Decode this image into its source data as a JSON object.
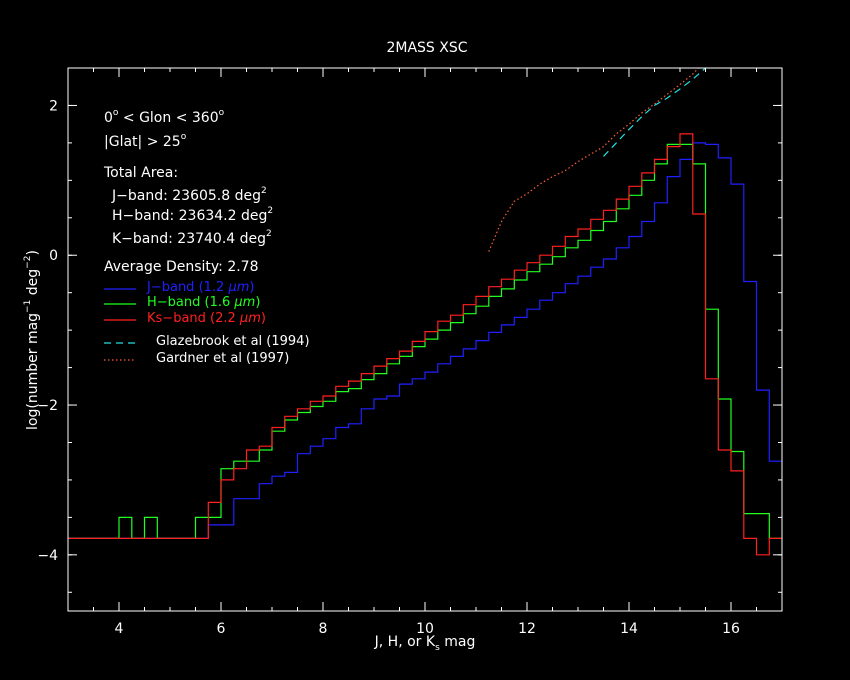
{
  "chart_data": {
    "type": "line",
    "title": "2MASS XSC",
    "xlabel": {
      "main": "J, H, or K",
      "sub": "s",
      "tail": " mag"
    },
    "ylabel": {
      "main": "log(number mag",
      "sup1": "−1",
      "mid": " deg",
      "sup2": "−2",
      "tail": ")"
    },
    "xlim": [
      3,
      17
    ],
    "ylim": [
      -4.75,
      2.5
    ],
    "xticks": [
      4,
      6,
      8,
      10,
      12,
      14,
      16
    ],
    "xtick_labels": [
      "4",
      "6",
      "8",
      "10",
      "12",
      "14",
      "16"
    ],
    "yticks": [
      -4,
      -2,
      0,
      2
    ],
    "ytick_labels": [
      "−4",
      "−2",
      "0",
      "2"
    ],
    "annotations": {
      "glon": {
        "pre": "0",
        "deg1": "o",
        "mid": " < Glon < 360",
        "deg2": "o"
      },
      "glat": {
        "pre": "|Glat| > 25",
        "deg": "o"
      },
      "area_title": "Total Area:",
      "jband": {
        "text": "J−band: 23605.8 deg",
        "sup": "2"
      },
      "hband": {
        "text": "H−band: 23634.2 deg",
        "sup": "2"
      },
      "kband": {
        "text": "K−band: 23740.4 deg",
        "sup": "2"
      },
      "density": "Average Density: 2.78"
    },
    "series": [
      {
        "name": "J−band (1.2 μm)",
        "label_pre": "J−band (1.2 ",
        "label_unit": "μm",
        "label_post": ")",
        "color": "#2020ff",
        "style": "step",
        "x": [
          3.0,
          3.25,
          3.5,
          3.75,
          4.0,
          4.25,
          4.5,
          4.75,
          5.0,
          5.25,
          5.5,
          5.75,
          6.0,
          6.25,
          6.5,
          6.75,
          7.0,
          7.25,
          7.5,
          7.75,
          8.0,
          8.25,
          8.5,
          8.75,
          9.0,
          9.25,
          9.5,
          9.75,
          10.0,
          10.25,
          10.5,
          10.75,
          11.0,
          11.25,
          11.5,
          11.75,
          12.0,
          12.25,
          12.5,
          12.75,
          13.0,
          13.25,
          13.5,
          13.75,
          14.0,
          14.25,
          14.5,
          14.75,
          15.0,
          15.25,
          15.5,
          15.75,
          16.0,
          16.25,
          16.5,
          16.75,
          17.0
        ],
        "y": [
          -3.78,
          -3.78,
          -3.78,
          -3.78,
          -3.78,
          -3.78,
          -3.78,
          -3.78,
          -3.78,
          -3.78,
          -3.78,
          -3.6,
          -3.6,
          -3.25,
          -3.25,
          -3.05,
          -2.95,
          -2.9,
          -2.65,
          -2.55,
          -2.45,
          -2.3,
          -2.25,
          -2.05,
          -1.92,
          -1.88,
          -1.72,
          -1.65,
          -1.56,
          -1.45,
          -1.35,
          -1.25,
          -1.14,
          -1.03,
          -0.93,
          -0.83,
          -0.72,
          -0.6,
          -0.5,
          -0.38,
          -0.28,
          -0.16,
          -0.05,
          0.1,
          0.25,
          0.45,
          0.7,
          1.05,
          1.28,
          1.5,
          1.48,
          1.3,
          0.95,
          -0.35,
          -1.8,
          -2.75,
          -3.78
        ]
      },
      {
        "name": "H−band (1.6 μm)",
        "label_pre": "H−band (1.6 ",
        "label_unit": "μm",
        "label_post": ")",
        "color": "#20ff20",
        "style": "step",
        "x": [
          3.0,
          3.25,
          3.5,
          3.75,
          4.0,
          4.25,
          4.5,
          4.75,
          5.0,
          5.25,
          5.5,
          5.75,
          6.0,
          6.25,
          6.5,
          6.75,
          7.0,
          7.25,
          7.5,
          7.75,
          8.0,
          8.25,
          8.5,
          8.75,
          9.0,
          9.25,
          9.5,
          9.75,
          10.0,
          10.25,
          10.5,
          10.75,
          11.0,
          11.25,
          11.5,
          11.75,
          12.0,
          12.25,
          12.5,
          12.75,
          13.0,
          13.25,
          13.5,
          13.75,
          14.0,
          14.25,
          14.5,
          14.75,
          15.0,
          15.25,
          15.5,
          15.75,
          16.0,
          16.25,
          16.5,
          16.75,
          17.0
        ],
        "y": [
          -3.78,
          -3.78,
          -3.78,
          -3.78,
          -3.5,
          -3.78,
          -3.5,
          -3.78,
          -3.78,
          -3.78,
          -3.5,
          -3.5,
          -2.85,
          -2.75,
          -2.75,
          -2.6,
          -2.35,
          -2.2,
          -2.1,
          -2.02,
          -1.95,
          -1.82,
          -1.78,
          -1.66,
          -1.58,
          -1.45,
          -1.35,
          -1.22,
          -1.12,
          -1.0,
          -0.9,
          -0.78,
          -0.68,
          -0.55,
          -0.45,
          -0.33,
          -0.22,
          -0.12,
          -0.02,
          0.1,
          0.2,
          0.33,
          0.45,
          0.62,
          0.8,
          1.0,
          1.22,
          1.48,
          1.48,
          1.22,
          -0.72,
          -1.92,
          -2.62,
          -3.45,
          -3.45,
          -3.78,
          -3.78
        ]
      },
      {
        "name": "Ks−band (2.2 μm)",
        "label_pre": "Ks−band (2.2 ",
        "label_unit": "μm",
        "label_post": ")",
        "color": "#ff2020",
        "style": "step",
        "x": [
          3.0,
          3.25,
          3.5,
          3.75,
          4.0,
          4.25,
          4.5,
          4.75,
          5.0,
          5.25,
          5.5,
          5.75,
          6.0,
          6.25,
          6.5,
          6.75,
          7.0,
          7.25,
          7.5,
          7.75,
          8.0,
          8.25,
          8.5,
          8.75,
          9.0,
          9.25,
          9.5,
          9.75,
          10.0,
          10.25,
          10.5,
          10.75,
          11.0,
          11.25,
          11.5,
          11.75,
          12.0,
          12.25,
          12.5,
          12.75,
          13.0,
          13.25,
          13.5,
          13.75,
          14.0,
          14.25,
          14.5,
          14.75,
          15.0,
          15.25,
          15.5,
          15.75,
          16.0,
          16.25,
          16.5,
          16.75,
          17.0
        ],
        "y": [
          -3.78,
          -3.78,
          -3.78,
          -3.78,
          -3.78,
          -3.78,
          -3.78,
          -3.78,
          -3.78,
          -3.78,
          -3.78,
          -3.3,
          -3.0,
          -2.85,
          -2.6,
          -2.55,
          -2.3,
          -2.15,
          -2.05,
          -1.95,
          -1.88,
          -1.75,
          -1.68,
          -1.58,
          -1.48,
          -1.38,
          -1.28,
          -1.15,
          -1.02,
          -0.88,
          -0.8,
          -0.66,
          -0.55,
          -0.42,
          -0.32,
          -0.2,
          -0.1,
          0.0,
          0.12,
          0.25,
          0.35,
          0.48,
          0.6,
          0.75,
          0.92,
          1.1,
          1.28,
          1.45,
          1.62,
          0.55,
          -1.65,
          -2.6,
          -2.88,
          -3.78,
          -4.0,
          -3.78,
          -3.78
        ]
      },
      {
        "name": "Glazebrook et al (1994)",
        "color": "#20e0e0",
        "style": "dashed",
        "x": [
          13.5,
          13.75,
          14.0,
          14.25,
          14.5,
          14.75,
          15.0,
          15.25,
          15.5
        ],
        "y": [
          1.32,
          1.5,
          1.68,
          1.85,
          2.0,
          2.1,
          2.22,
          2.35,
          2.5
        ]
      },
      {
        "name": "Gardner et al (1997)",
        "color": "#ff6030",
        "style": "dotted",
        "x": [
          11.25,
          11.5,
          11.75,
          12.0,
          12.25,
          12.5,
          12.75,
          13.0,
          13.25,
          13.5,
          13.75,
          14.0,
          14.25,
          14.5,
          14.75,
          15.0,
          15.25,
          15.5
        ],
        "y": [
          0.05,
          0.45,
          0.72,
          0.82,
          0.95,
          1.05,
          1.13,
          1.25,
          1.35,
          1.45,
          1.62,
          1.75,
          1.9,
          2.02,
          2.15,
          2.28,
          2.42,
          2.6
        ]
      }
    ]
  }
}
